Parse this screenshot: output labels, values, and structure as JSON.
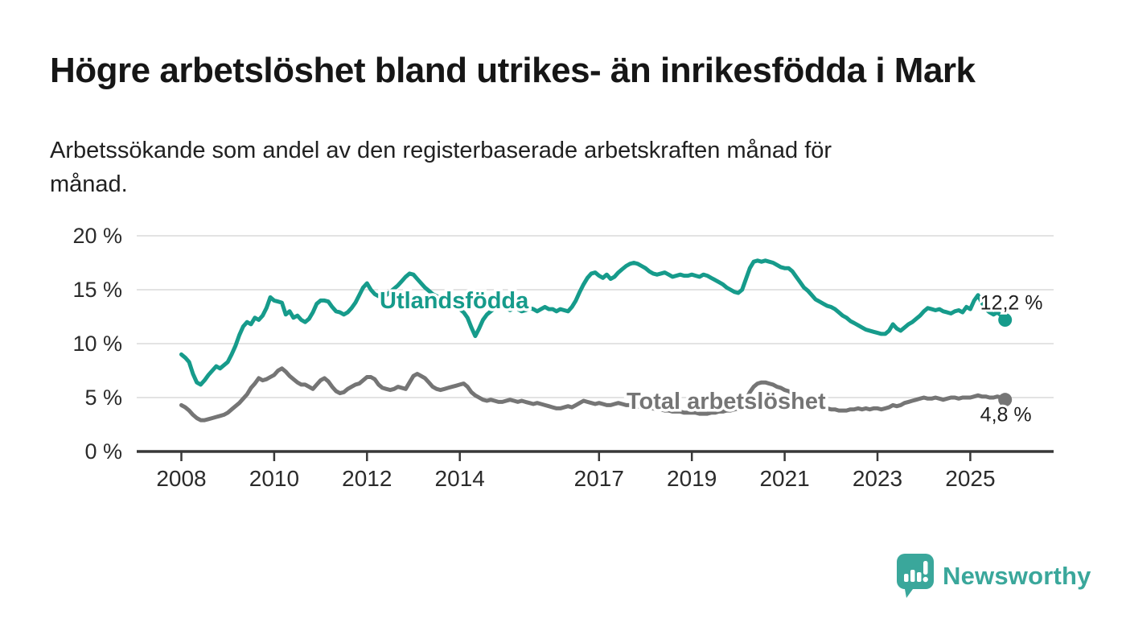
{
  "header": {
    "title": "Högre arbetslöshet bland utrikes- än inrikesfödda i Mark",
    "subtitle": "Arbetssökande som andel av den registerbaserade arbetskraften månad för\nmånad."
  },
  "footer": {
    "brand": "Newsworthy",
    "brand_color": "#3aa79b"
  },
  "colors": {
    "series_foreign_born": "#169b8b",
    "series_total": "#757575",
    "grid": "#dadada",
    "axis": "#383838",
    "text": "#2b2b2b"
  },
  "chart_data": {
    "type": "line",
    "unit": "%",
    "frequency": "monthly",
    "x_start": "2008-01",
    "x_end": "2025-10",
    "ylim": [
      0,
      21
    ],
    "grid": "horizontal",
    "legend": "inline-labels",
    "x_ticks": [
      {
        "year": 2008,
        "label": "2008"
      },
      {
        "year": 2010,
        "label": "2010"
      },
      {
        "year": 2012,
        "label": "2012"
      },
      {
        "year": 2014,
        "label": "2014"
      },
      {
        "year": 2017,
        "label": "2017"
      },
      {
        "year": 2019,
        "label": "2019"
      },
      {
        "year": 2021,
        "label": "2021"
      },
      {
        "year": 2023,
        "label": "2023"
      },
      {
        "year": 2025,
        "label": "2025"
      }
    ],
    "y_ticks": [
      {
        "value": 0,
        "label": "0 %"
      },
      {
        "value": 5,
        "label": "5 %"
      },
      {
        "value": 10,
        "label": "10 %"
      },
      {
        "value": 15,
        "label": "15 %"
      },
      {
        "value": 20,
        "label": "20 %"
      }
    ],
    "series": [
      {
        "name": "Utlandsfödda",
        "color": "#169b8b",
        "end_label": "12,2 %",
        "end_value": 12.2,
        "values": [
          9.0,
          8.7,
          8.3,
          7.2,
          6.4,
          6.2,
          6.6,
          7.1,
          7.5,
          7.9,
          7.7,
          8.0,
          8.3,
          9.0,
          9.8,
          10.8,
          11.6,
          12.0,
          11.8,
          12.4,
          12.2,
          12.6,
          13.3,
          14.3,
          14.0,
          13.9,
          13.8,
          12.7,
          13.0,
          12.4,
          12.6,
          12.2,
          12.0,
          12.3,
          12.9,
          13.7,
          14.0,
          14.0,
          13.9,
          13.4,
          13.0,
          12.9,
          12.7,
          12.9,
          13.3,
          13.8,
          14.5,
          15.2,
          15.6,
          15.0,
          14.6,
          14.4,
          14.3,
          14.5,
          14.8,
          15.1,
          15.4,
          15.8,
          16.2,
          16.5,
          16.4,
          16.0,
          15.6,
          15.2,
          14.9,
          14.6,
          14.4,
          14.2,
          14.0,
          13.8,
          13.6,
          13.4,
          13.2,
          12.9,
          12.4,
          11.5,
          10.7,
          11.4,
          12.2,
          12.7,
          13.0,
          13.3,
          13.4,
          13.3,
          13.3,
          13.1,
          13.3,
          13.2,
          13.0,
          13.1,
          13.3,
          13.2,
          13.0,
          13.2,
          13.4,
          13.2,
          13.2,
          13.0,
          13.2,
          13.1,
          13.0,
          13.4,
          14.0,
          14.8,
          15.5,
          16.1,
          16.5,
          16.6,
          16.3,
          16.1,
          16.4,
          16.0,
          16.2,
          16.6,
          16.9,
          17.2,
          17.4,
          17.5,
          17.4,
          17.2,
          17.0,
          16.7,
          16.5,
          16.4,
          16.5,
          16.6,
          16.4,
          16.2,
          16.3,
          16.4,
          16.3,
          16.3,
          16.4,
          16.3,
          16.2,
          16.4,
          16.3,
          16.1,
          15.9,
          15.7,
          15.5,
          15.2,
          15.0,
          14.8,
          14.7,
          15.0,
          16.0,
          17.0,
          17.6,
          17.7,
          17.6,
          17.7,
          17.6,
          17.5,
          17.3,
          17.1,
          17.0,
          17.0,
          16.7,
          16.2,
          15.7,
          15.2,
          14.9,
          14.5,
          14.1,
          13.9,
          13.7,
          13.5,
          13.4,
          13.2,
          12.9,
          12.6,
          12.4,
          12.1,
          11.9,
          11.7,
          11.5,
          11.3,
          11.2,
          11.1,
          11.0,
          10.9,
          10.9,
          11.2,
          11.8,
          11.4,
          11.2,
          11.5,
          11.8,
          12.0,
          12.3,
          12.6,
          13.0,
          13.3,
          13.2,
          13.1,
          13.2,
          13.0,
          12.9,
          12.8,
          13.0,
          13.1,
          12.9,
          13.4,
          13.2,
          14.0,
          14.5,
          13.8,
          13.2,
          12.9,
          12.7,
          12.9,
          12.6,
          12.2
        ]
      },
      {
        "name": "Total arbetslöshet",
        "color": "#757575",
        "end_label": "4,8 %",
        "end_value": 4.8,
        "values": [
          4.3,
          4.1,
          3.8,
          3.4,
          3.1,
          2.9,
          2.9,
          3.0,
          3.1,
          3.2,
          3.3,
          3.4,
          3.6,
          3.9,
          4.2,
          4.5,
          4.9,
          5.3,
          5.9,
          6.3,
          6.8,
          6.6,
          6.7,
          6.9,
          7.1,
          7.5,
          7.7,
          7.4,
          7.0,
          6.7,
          6.4,
          6.2,
          6.2,
          6.0,
          5.8,
          6.2,
          6.6,
          6.8,
          6.5,
          6.0,
          5.6,
          5.4,
          5.5,
          5.8,
          6.0,
          6.2,
          6.3,
          6.6,
          6.9,
          6.9,
          6.7,
          6.2,
          5.9,
          5.8,
          5.7,
          5.8,
          6.0,
          5.9,
          5.8,
          6.4,
          7.0,
          7.2,
          7.0,
          6.8,
          6.4,
          6.0,
          5.8,
          5.7,
          5.8,
          5.9,
          6.0,
          6.1,
          6.2,
          6.3,
          6.0,
          5.5,
          5.2,
          5.0,
          4.8,
          4.7,
          4.8,
          4.7,
          4.6,
          4.6,
          4.7,
          4.8,
          4.7,
          4.6,
          4.7,
          4.6,
          4.5,
          4.4,
          4.5,
          4.4,
          4.3,
          4.2,
          4.1,
          4.0,
          4.0,
          4.1,
          4.2,
          4.1,
          4.3,
          4.5,
          4.7,
          4.6,
          4.5,
          4.4,
          4.5,
          4.4,
          4.3,
          4.3,
          4.4,
          4.5,
          4.4,
          4.3,
          4.3,
          4.2,
          4.2,
          4.1,
          4.1,
          4.0,
          4.0,
          3.9,
          3.9,
          3.8,
          3.8,
          3.7,
          3.7,
          3.7,
          3.6,
          3.6,
          3.6,
          3.6,
          3.5,
          3.5,
          3.5,
          3.6,
          3.6,
          3.7,
          3.7,
          3.8,
          3.8,
          3.9,
          4.0,
          4.2,
          4.8,
          5.5,
          6.0,
          6.3,
          6.4,
          6.4,
          6.3,
          6.2,
          6.0,
          5.9,
          5.7,
          5.6,
          5.4,
          5.2,
          5.0,
          4.8,
          4.7,
          4.5,
          4.4,
          4.2,
          4.1,
          4.0,
          3.9,
          3.9,
          3.8,
          3.8,
          3.8,
          3.9,
          3.9,
          4.0,
          3.9,
          4.0,
          3.9,
          4.0,
          4.0,
          3.9,
          4.0,
          4.1,
          4.3,
          4.2,
          4.3,
          4.5,
          4.6,
          4.7,
          4.8,
          4.9,
          5.0,
          4.9,
          4.9,
          5.0,
          4.9,
          4.8,
          4.9,
          5.0,
          5.0,
          4.9,
          5.0,
          5.0,
          5.0,
          5.1,
          5.2,
          5.1,
          5.1,
          5.0,
          5.0,
          5.1,
          5.0,
          4.8
        ]
      }
    ]
  }
}
